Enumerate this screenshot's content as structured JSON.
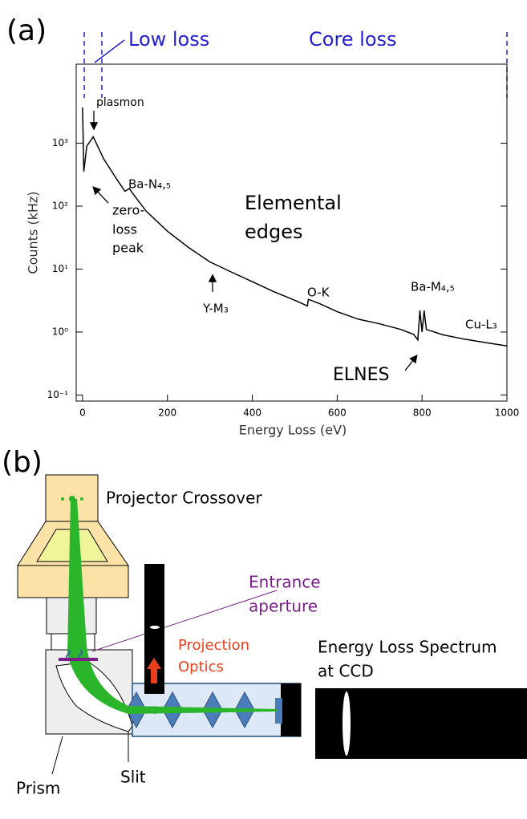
{
  "chart_data": {
    "type": "line",
    "panel_label": "(a)",
    "x_label": "Energy Loss (eV)",
    "y_label": "Counts (kHz)",
    "region_labels": [
      "Low loss",
      "Core loss"
    ],
    "annotations": [
      "plasmon",
      "Ba-N₄,₅",
      "zero-",
      "loss",
      "peak",
      "Elemental",
      "edges",
      "Y-M₃",
      "O-K",
      "Ba-M₄,₅",
      "Cu-L₃",
      "ELNES"
    ],
    "x": [
      0,
      3,
      10,
      25,
      50,
      80,
      100,
      110,
      130,
      150,
      200,
      250,
      300,
      350,
      400,
      450,
      500,
      530,
      532,
      560,
      600,
      650,
      700,
      750,
      780,
      790,
      795,
      800,
      805,
      810,
      850,
      900,
      950,
      1000
    ],
    "values": [
      3700,
      355,
      900,
      1260,
      560,
      270,
      172,
      190,
      125,
      83,
      40,
      22,
      13,
      9,
      6.3,
      4.4,
      3.2,
      2.6,
      3.3,
      2.8,
      2.1,
      1.6,
      1.35,
      1.1,
      0.92,
      0.75,
      2.2,
      1,
      2.2,
      1.1,
      0.9,
      0.77,
      0.68,
      0.6
    ],
    "color": "#000000",
    "log_y": true,
    "xlim": [
      -15,
      1000
    ],
    "xticks": [
      0,
      200,
      400,
      600,
      800,
      1000
    ],
    "ylim": [
      0.08,
      18000
    ],
    "yticks": [
      {
        "value": 0.1,
        "label": "10⁻¹"
      },
      {
        "value": 1,
        "label": "10⁰"
      },
      {
        "value": 10,
        "label": "10¹"
      },
      {
        "value": 100,
        "label": "10²"
      },
      {
        "value": 1000,
        "label": "10³"
      }
    ],
    "grid": false
  },
  "diagram": {
    "panel_label": "(b)",
    "crossover": "Projector Crossover",
    "aperture": [
      "Entrance",
      "aperture"
    ],
    "optics": [
      "Projection",
      "Optics"
    ],
    "spectrum": [
      "Energy Loss Spectrum",
      "at CCD"
    ],
    "prism": "Prism",
    "slit": "Slit"
  }
}
